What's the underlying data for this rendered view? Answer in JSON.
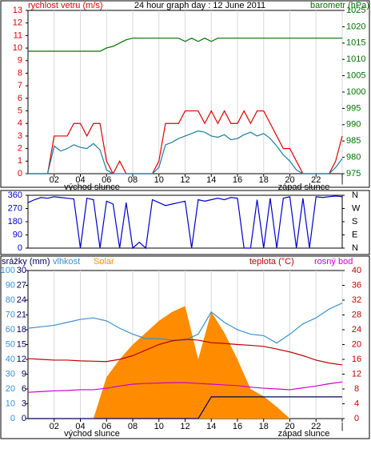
{
  "chart_data": [
    {
      "type": "line",
      "title": "24 hour graph day : 12 June 2011",
      "ylabel": "rychlost vetru (m/s)",
      "y2label": "barometr (hPa)",
      "annotations": [
        "východ slunce",
        "západ slunce"
      ],
      "grid": true,
      "x": [
        0,
        0.5,
        1,
        1.5,
        2,
        2.5,
        3,
        3.5,
        4,
        4.5,
        5,
        5.5,
        6,
        6.5,
        7,
        7.5,
        8,
        8.5,
        9,
        9.5,
        10,
        10.5,
        11,
        11.5,
        12,
        12.5,
        13,
        13.5,
        14,
        14.5,
        15,
        15.5,
        16,
        16.5,
        17,
        17.5,
        18,
        18.5,
        19,
        19.5,
        20,
        20.5,
        21,
        21.5,
        22,
        22.5,
        23,
        23.5,
        24
      ],
      "xlim": [
        0,
        24
      ],
      "xticks": [
        {
          "value": 2,
          "label": "02"
        },
        {
          "value": 4,
          "label": "04"
        },
        {
          "value": 6,
          "label": "06"
        },
        {
          "value": 8,
          "label": "08"
        },
        10,
        12,
        14,
        16,
        18,
        20,
        22,
        {
          "value": 24,
          "label": "|"
        }
      ],
      "ylim": [
        0,
        13
      ],
      "yticks": [
        0,
        1,
        2,
        3,
        4,
        5,
        6,
        7,
        8,
        9,
        10,
        11,
        12,
        13
      ],
      "y2lim": [
        975,
        1025
      ],
      "y2ticks": [
        975,
        980,
        985,
        990,
        995,
        1000,
        1005,
        1010,
        1015,
        1020,
        1025
      ],
      "series": [
        {
          "color": "#e00000",
          "values": [
            0,
            0,
            0,
            0,
            3,
            3,
            3,
            4,
            4,
            3,
            4,
            4,
            1,
            0,
            1,
            0,
            0,
            0,
            0,
            0,
            1,
            4,
            4,
            4,
            5,
            5,
            5,
            4,
            5,
            4,
            5,
            4,
            4,
            5,
            4,
            5,
            5,
            4,
            3,
            2,
            2,
            1,
            0,
            0,
            0,
            0,
            0,
            1,
            3
          ]
        },
        {
          "color": "#1a7fa0",
          "values": [
            0,
            0,
            0,
            0,
            2.2,
            1.8,
            2,
            2.3,
            2.1,
            2,
            2.4,
            1.9,
            0.3,
            0,
            0,
            0,
            0,
            0,
            0,
            0,
            0.5,
            2.3,
            2.5,
            2.8,
            3,
            3.2,
            3.4,
            3.3,
            3,
            2.9,
            3.1,
            2.7,
            2.8,
            3.1,
            3.3,
            3,
            3.2,
            2.8,
            2.2,
            1.5,
            1,
            0.3,
            0,
            0,
            0,
            0,
            0,
            0.5,
            1.2
          ]
        },
        {
          "color": "#007000",
          "axis": "y2",
          "values": [
            1012.5,
            1012.5,
            1012.5,
            1012.5,
            1012.5,
            1012.5,
            1012.5,
            1012.5,
            1012.5,
            1012.5,
            1012.5,
            1012.5,
            1013.5,
            1014,
            1015,
            1016,
            1016.5,
            1016.5,
            1016.5,
            1016.5,
            1016.5,
            1016.5,
            1016.5,
            1016.5,
            1015.5,
            1016.5,
            1015.5,
            1016.5,
            1015.5,
            1016.5,
            1016.5,
            1016.5,
            1016.5,
            1016.5,
            1016.5,
            1016.5,
            1016.5,
            1016.5,
            1016.5,
            1016.5,
            1016.5,
            1016.5,
            1016.5,
            1016.5,
            1016.5,
            1016.5,
            1016.5,
            1016.5,
            1016.5
          ]
        }
      ]
    },
    {
      "type": "line",
      "grid": false,
      "x": [
        0,
        0.5,
        1,
        1.5,
        2,
        2.5,
        3,
        3.5,
        4,
        4.5,
        5,
        5.5,
        6,
        6.5,
        7,
        7.5,
        8,
        8.5,
        9,
        9.5,
        10,
        10.5,
        11,
        11.5,
        12,
        12.5,
        13,
        13.5,
        14,
        14.5,
        15,
        15.5,
        16,
        16.5,
        17,
        17.5,
        18,
        18.5,
        19,
        19.5,
        20,
        20.5,
        21,
        21.5,
        22,
        22.5,
        23,
        23.5,
        24
      ],
      "xlim": [
        0,
        24
      ],
      "ylim": [
        0,
        360
      ],
      "yticks": [
        0,
        90,
        180,
        270,
        360
      ],
      "y2lim": [
        0,
        360
      ],
      "y2ticks": [
        {
          "value": 0,
          "label": "N"
        },
        {
          "value": 90,
          "label": "E"
        },
        {
          "value": 180,
          "label": "S"
        },
        {
          "value": 270,
          "label": "W"
        },
        {
          "value": 360,
          "label": "N"
        }
      ],
      "series": [
        {
          "color": "#0000cc",
          "values": [
            310,
            330,
            345,
            340,
            350,
            345,
            340,
            335,
            0,
            340,
            330,
            0,
            320,
            300,
            0,
            310,
            0,
            40,
            0,
            330,
            310,
            290,
            300,
            310,
            320,
            0,
            330,
            320,
            330,
            340,
            330,
            345,
            340,
            0,
            0,
            330,
            0,
            340,
            0,
            340,
            350,
            0,
            340,
            0,
            350,
            345,
            350,
            355,
            350
          ]
        }
      ]
    },
    {
      "type": "line",
      "annotations": [
        "východ slunce",
        "západ slunce"
      ],
      "grid": true,
      "x": [
        0,
        1,
        2,
        3,
        4,
        5,
        6,
        7,
        8,
        9,
        10,
        11,
        12,
        13,
        14,
        15,
        16,
        17,
        18,
        19,
        20,
        21,
        22,
        23,
        24
      ],
      "xlim": [
        0,
        24
      ],
      "xticks": [
        {
          "value": 2,
          "label": "02"
        },
        {
          "value": 4,
          "label": "04"
        },
        {
          "value": 6,
          "label": "06"
        },
        {
          "value": 8,
          "label": "08"
        },
        10,
        12,
        14,
        16,
        18,
        20,
        22,
        {
          "value": 24,
          "label": "|"
        }
      ],
      "ylim": [
        0,
        100
      ],
      "yticks": [
        0,
        10,
        20,
        30,
        40,
        50,
        60,
        70,
        80,
        90,
        100
      ],
      "y3lim": [
        0,
        30
      ],
      "y3ticks": [
        0,
        3,
        6,
        9,
        12,
        15,
        18,
        21,
        24,
        27,
        30
      ],
      "y2lim": [
        0,
        40
      ],
      "y2ticks": [
        0,
        4,
        8,
        12,
        16,
        20,
        24,
        28,
        32,
        36,
        40
      ],
      "series": [
        {
          "name": "srážky (mm)",
          "color": "#000060",
          "axis": "y3",
          "values": [
            0,
            0,
            0,
            0,
            0,
            0,
            0,
            0,
            0,
            0,
            0,
            0,
            0,
            0,
            4.4,
            4.4,
            4.4,
            4.4,
            4.4,
            4.4,
            4.4,
            4.4,
            4.4,
            4.4,
            4.4
          ]
        },
        {
          "name": "vlhkost",
          "color": "#3a8fd0",
          "values": [
            61,
            62,
            63,
            65,
            67,
            68,
            66,
            61,
            57,
            54,
            54,
            53,
            53,
            57,
            72,
            65,
            60,
            57,
            56,
            51,
            57,
            64,
            68,
            74,
            78
          ]
        },
        {
          "name": "Solar",
          "color": "#ff8c00",
          "type": "area",
          "values": [
            0,
            0,
            0,
            0,
            0,
            0,
            28,
            40,
            50,
            58,
            66,
            72,
            76,
            40,
            72,
            58,
            40,
            20,
            15,
            8,
            0,
            0,
            0,
            0,
            0
          ]
        },
        {
          "name": "teplota (°C)",
          "color": "#c00000",
          "axis": "y2",
          "values": [
            16.2,
            16,
            15.8,
            15.8,
            15.6,
            15.5,
            15.4,
            16,
            17,
            18.5,
            20,
            21,
            21.4,
            21.2,
            20.5,
            20.3,
            20,
            19.8,
            19.5,
            18.8,
            18,
            17,
            15.8,
            15,
            14.5
          ]
        },
        {
          "name": "rosný bod",
          "color": "#cc00cc",
          "axis": "y2",
          "values": [
            7.1,
            7.3,
            7.5,
            7.6,
            7.8,
            7.8,
            8.2,
            8.8,
            9.3,
            9.5,
            9.6,
            9.7,
            9.7,
            9.5,
            9.3,
            9.1,
            8.9,
            8.5,
            8.2,
            8,
            7.8,
            8.3,
            8.8,
            9.4,
            9.9
          ]
        }
      ]
    }
  ]
}
